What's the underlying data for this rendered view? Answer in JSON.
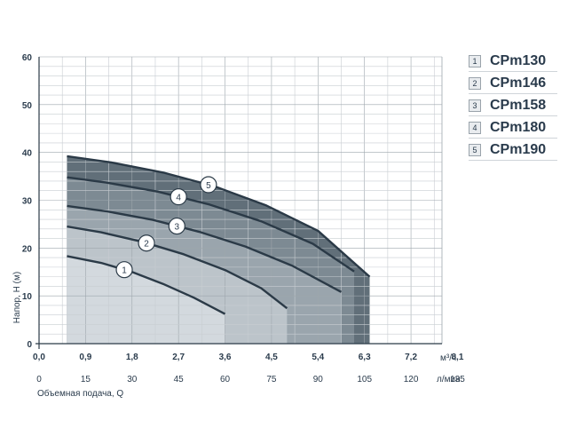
{
  "chart_data": {
    "type": "line",
    "ylabel": "Напор, H (м)",
    "xlabel_top_unit": "м³/ч",
    "xlabel_bottom": "Объемная подача, Q",
    "xlabel_bottom_unit": "л/мин",
    "ylim": [
      0,
      60
    ],
    "xlim": [
      0,
      7.8
    ],
    "y_ticks": [
      "0",
      "10",
      "20",
      "30",
      "40",
      "50",
      "60"
    ],
    "x_ticks_top": [
      "0,0",
      "0,9",
      "1,8",
      "2,7",
      "3,6",
      "4,5",
      "5,4",
      "6,3",
      "7,2",
      "8,1"
    ],
    "x_ticks_bottom": [
      "0",
      "15",
      "30",
      "45",
      "60",
      "75",
      "90",
      "105",
      "120",
      "135"
    ],
    "grid": true,
    "legend_position": "top-right",
    "series": [
      {
        "label": "1",
        "name": "CPm130",
        "color": "#d3d9de",
        "x": [
          0.54,
          1.2,
          1.8,
          2.4,
          3.0,
          3.6
        ],
        "y": [
          18.3,
          16.9,
          15.0,
          12.5,
          9.6,
          6.2
        ]
      },
      {
        "label": "2",
        "name": "CPm146",
        "color": "#bcc4ca",
        "x": [
          0.54,
          1.2,
          2.0,
          2.8,
          3.6,
          4.3,
          4.8
        ],
        "y": [
          24.5,
          23.3,
          21.3,
          18.7,
          15.4,
          11.6,
          7.4
        ]
      },
      {
        "label": "3",
        "name": "CPm158",
        "color": "#9aa5ad",
        "x": [
          0.54,
          1.3,
          2.2,
          3.1,
          4.0,
          4.9,
          5.85
        ],
        "y": [
          28.8,
          27.7,
          25.9,
          23.4,
          20.3,
          16.3,
          10.8
        ]
      },
      {
        "label": "4",
        "name": "CPm180",
        "color": "#7d8a93",
        "x": [
          0.54,
          1.3,
          2.3,
          3.3,
          4.3,
          5.3,
          6.1
        ],
        "y": [
          34.8,
          33.7,
          31.8,
          29.1,
          25.6,
          20.9,
          15.1
        ]
      },
      {
        "label": "5",
        "name": "CPm190",
        "color": "#616f79",
        "x": [
          0.54,
          1.4,
          2.4,
          3.4,
          4.4,
          5.4,
          6.4
        ],
        "y": [
          39.2,
          37.9,
          35.8,
          32.9,
          28.9,
          23.6,
          14.0
        ]
      }
    ]
  }
}
